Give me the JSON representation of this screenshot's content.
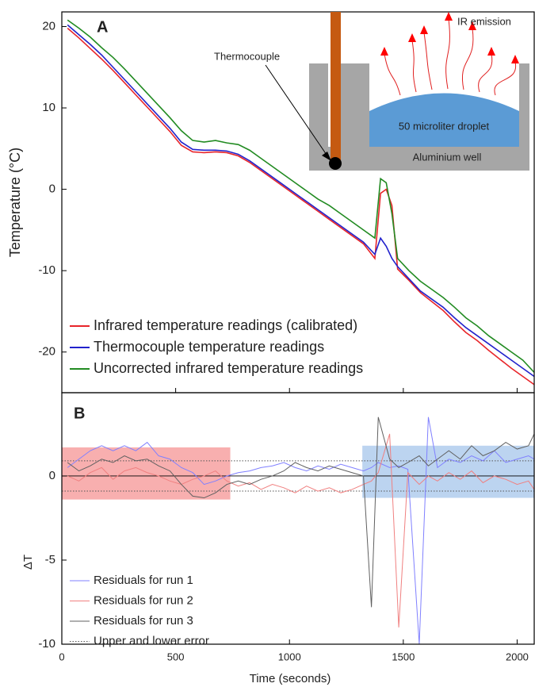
{
  "chart_data": [
    {
      "type": "line",
      "panel_label": "A",
      "ylabel": "Temperature (°C)",
      "x": [
        25,
        75,
        125,
        175,
        225,
        275,
        325,
        375,
        425,
        475,
        525,
        575,
        625,
        675,
        725,
        775,
        825,
        875,
        925,
        975,
        1025,
        1075,
        1125,
        1175,
        1225,
        1275,
        1325,
        1375,
        1400,
        1425,
        1450,
        1475,
        1525,
        1575,
        1625,
        1675,
        1725,
        1775,
        1825,
        1875,
        1925,
        1975,
        2025,
        2075
      ],
      "series": [
        {
          "name": "Infrared temperature readings (calibrated)",
          "color": "#e8252a",
          "values": [
            19.8,
            18.6,
            17.3,
            16,
            14.6,
            13.1,
            11.6,
            10.1,
            8.6,
            7.1,
            5.4,
            4.6,
            4.5,
            4.6,
            4.5,
            4.1,
            3.3,
            2.3,
            1.3,
            0.3,
            -0.7,
            -1.7,
            -2.7,
            -3.7,
            -4.7,
            -5.7,
            -6.7,
            -8.5,
            -0.5,
            0,
            -2,
            -9.8,
            -11.2,
            -12.7,
            -13.8,
            -14.9,
            -16.3,
            -17.6,
            -18.6,
            -19.8,
            -20.9,
            -22,
            -23,
            -24
          ]
        },
        {
          "name": "Thermocouple temperature readings",
          "color": "#2222cc",
          "values": [
            20.2,
            19,
            17.8,
            16.5,
            15,
            13.5,
            12,
            10.5,
            9,
            7.5,
            5.8,
            4.9,
            4.8,
            4.8,
            4.7,
            4.3,
            3.5,
            2.5,
            1.5,
            0.5,
            -0.5,
            -1.5,
            -2.5,
            -3.5,
            -4.5,
            -5.5,
            -6.5,
            -8,
            -6,
            -7,
            -8.5,
            -9.5,
            -11,
            -12.5,
            -13.5,
            -14.5,
            -15.8,
            -17,
            -18,
            -19,
            -20,
            -21,
            -22,
            -23
          ]
        },
        {
          "name": "Uncorrected infrared temperature readings",
          "color": "#228b22",
          "values": [
            20.8,
            19.8,
            18.7,
            17.4,
            16.2,
            14.8,
            13.3,
            11.8,
            10.3,
            8.8,
            7.2,
            6,
            5.8,
            6,
            5.7,
            5.5,
            4.8,
            3.8,
            2.8,
            1.8,
            0.8,
            -0.2,
            -1.2,
            -2,
            -3,
            -4,
            -5,
            -6,
            1.3,
            0.8,
            -3,
            -8.5,
            -10,
            -11.3,
            -12.3,
            -13.3,
            -14.5,
            -15.8,
            -16.8,
            -18,
            -19,
            -20,
            -21,
            -22.5
          ]
        }
      ],
      "xlim": [
        0,
        2075
      ],
      "xticks": [
        0,
        500,
        1000,
        1500,
        2000
      ],
      "ylim": [
        -25,
        21.8
      ],
      "yticks": [
        -20,
        -10,
        0,
        10,
        20
      ],
      "legend": "lower left",
      "inset": {
        "probe": "Thermocouple",
        "emission": "IR emission",
        "droplet": "50 microliter droplet",
        "well": "Aluminium well"
      }
    },
    {
      "type": "line",
      "panel_label": "B",
      "xlabel": "Time (seconds)",
      "ylabel": "ΔT",
      "x": [
        25,
        75,
        125,
        175,
        225,
        275,
        325,
        375,
        425,
        475,
        525,
        575,
        625,
        675,
        725,
        775,
        825,
        875,
        925,
        975,
        1025,
        1075,
        1125,
        1175,
        1225,
        1275,
        1325,
        1360,
        1390,
        1440,
        1480,
        1520,
        1570,
        1610,
        1650,
        1700,
        1750,
        1800,
        1850,
        1900,
        1950,
        2000,
        2050,
        2075
      ],
      "series": [
        {
          "name": "Residuals for run 1",
          "color": "#8080ff",
          "values": [
            0.5,
            1,
            1.5,
            1.8,
            1.5,
            1.8,
            1.5,
            2,
            1.2,
            1,
            0.5,
            0.2,
            -0.5,
            -0.3,
            0,
            0.2,
            0.3,
            0.5,
            0.6,
            0.8,
            0.5,
            0.3,
            0.6,
            0.4,
            0.7,
            0.5,
            0.3,
            0.5,
            0.8,
            0.5,
            0.6,
            0.4,
            -10,
            3.5,
            0.5,
            1,
            0.8,
            1.2,
            0.9,
            1.5,
            0.8,
            1,
            1.2,
            1
          ]
        },
        {
          "name": "Residuals for run 2",
          "color": "#f08080",
          "values": [
            0,
            -0.3,
            0.2,
            0.5,
            -0.2,
            0.3,
            0.5,
            0.2,
            0,
            -0.3,
            -0.5,
            -0.2,
            0,
            0.3,
            -0.3,
            -0.6,
            -0.4,
            -0.8,
            -0.5,
            -0.7,
            -1,
            -0.6,
            -0.9,
            -0.7,
            -1,
            -0.8,
            -0.5,
            -0.3,
            0.2,
            2.5,
            -9,
            0.2,
            -0.5,
            0,
            -0.3,
            0.2,
            -0.2,
            0.3,
            -0.4,
            0,
            -0.2,
            -0.5,
            -0.3,
            -0.8
          ]
        },
        {
          "name": "Residuals for run 3",
          "color": "#606060",
          "values": [
            0.8,
            0.3,
            0.6,
            1,
            0.8,
            1.2,
            0.9,
            1,
            0.6,
            0.3,
            -0.5,
            -1.2,
            -1.3,
            -1,
            -0.5,
            -0.3,
            -0.5,
            -0.2,
            0,
            0.3,
            0.8,
            0.5,
            0.3,
            0.6,
            0.4,
            0.2,
            0,
            -7.8,
            3.5,
            1,
            0.5,
            0.8,
            1.2,
            0.6,
            1,
            1.5,
            1,
            1.8,
            1.2,
            1.5,
            2,
            1.6,
            1.8,
            2.5
          ]
        }
      ],
      "error_lines": {
        "name": "Upper and lower error",
        "values": [
          -0.9,
          0.9
        ],
        "color": "#555555"
      },
      "regions": [
        {
          "x": [
            0,
            740
          ],
          "y": [
            -1.4,
            1.7
          ],
          "color": "#f47a7a"
        },
        {
          "x": [
            1320,
            2075
          ],
          "y": [
            -1.3,
            1.8
          ],
          "color": "#8fb8e6"
        }
      ],
      "xlim": [
        0,
        2075
      ],
      "xticks": [
        0,
        500,
        1000,
        1500,
        2000
      ],
      "ylim": [
        -10,
        4.95
      ],
      "yticks": [
        -10,
        -5,
        0
      ],
      "legend": "lower left"
    }
  ]
}
